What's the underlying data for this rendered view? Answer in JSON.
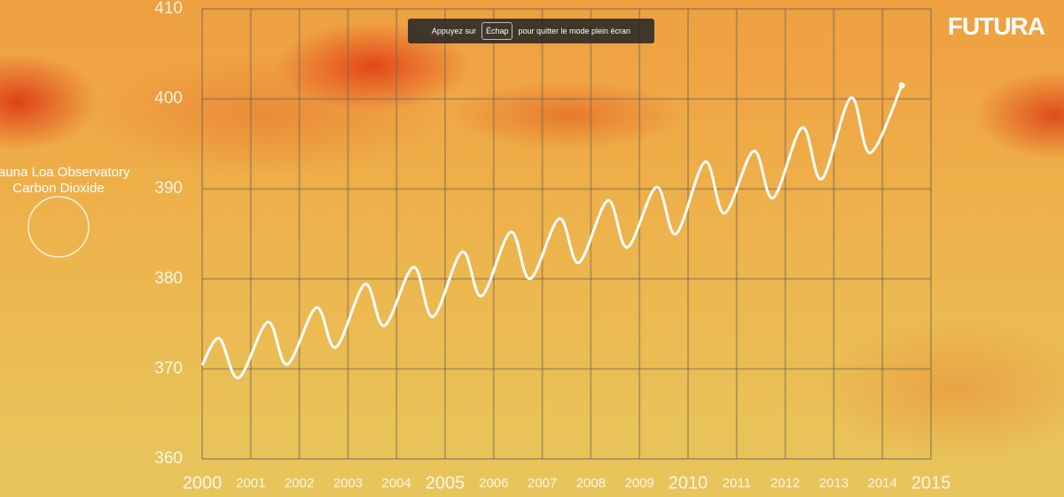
{
  "chart_data": {
    "type": "line",
    "annotation": [
      "Mauna Loa Observatory",
      "Carbon Dioxide"
    ],
    "x": [
      2000,
      2000.35,
      2000.75,
      2001.35,
      2001.75,
      2002.35,
      2002.75,
      2003.35,
      2003.75,
      2004.35,
      2004.75,
      2005.35,
      2005.75,
      2006.35,
      2006.75,
      2007.35,
      2007.75,
      2008.35,
      2008.75,
      2009.35,
      2009.75,
      2010.35,
      2010.75,
      2011.35,
      2011.75,
      2012.35,
      2012.75,
      2013.35,
      2013.75,
      2014.4
    ],
    "series": [
      {
        "color": "#ffffff",
        "values": [
          370.4,
          373.4,
          369.0,
          375.2,
          370.5,
          376.8,
          372.4,
          379.4,
          374.8,
          381.3,
          375.8,
          383.0,
          378.1,
          385.2,
          380.0,
          386.7,
          381.8,
          388.7,
          383.5,
          390.2,
          385.0,
          393.0,
          387.3,
          394.2,
          389.0,
          396.8,
          391.1,
          400.1,
          394.0,
          401.5
        ]
      }
    ],
    "xlim": [
      2000,
      2015
    ],
    "xticks": [
      2000,
      2001,
      2002,
      2003,
      2004,
      2005,
      2006,
      2007,
      2008,
      2009,
      2010,
      2011,
      2012,
      2013,
      2014,
      2015
    ],
    "ylim": [
      360,
      410
    ],
    "yticks": [
      360,
      370,
      380,
      390,
      400,
      410
    ],
    "grid": true
  },
  "fullscreen_notice": {
    "before": "Appuyez sur",
    "key": "Échap",
    "after": "pour quitter le mode plein écran"
  },
  "logo": "FUTURA"
}
